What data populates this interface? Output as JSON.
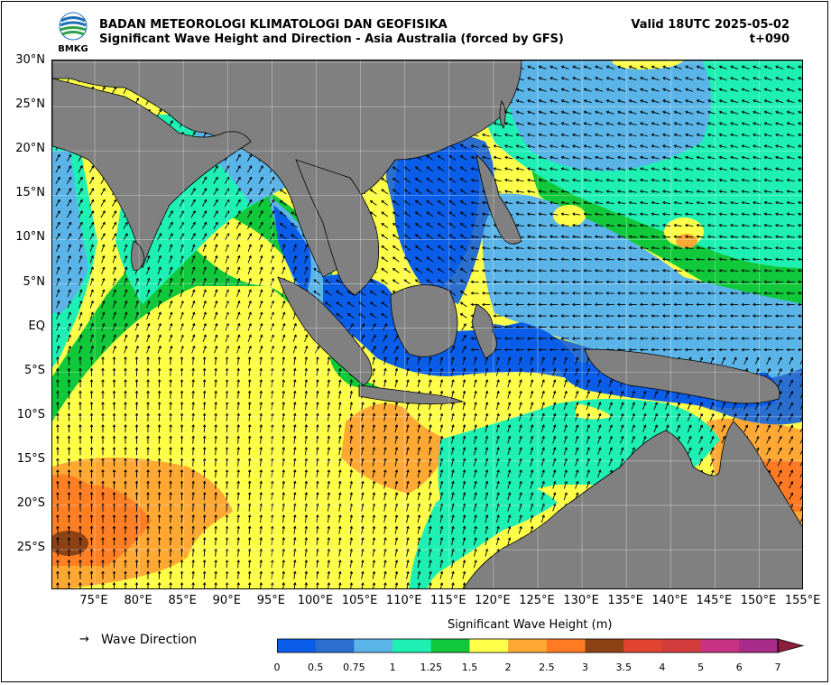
{
  "header": {
    "agency": "BADAN METEOROLOGI KLIMATOLOGI DAN GEOFISIKA",
    "product": "Significant Wave Height and Direction - Asia Australia (forced by GFS)",
    "valid": "Valid 18UTC 2025-05-02",
    "lead_time": "t+090",
    "logo_text": "BMKG"
  },
  "map": {
    "lat_labels": [
      "30°N",
      "25°N",
      "20°N",
      "15°N",
      "10°N",
      "5°N",
      "EQ",
      "5°S",
      "10°S",
      "15°S",
      "20°S",
      "25°S"
    ],
    "lon_labels": [
      "75°E",
      "80°E",
      "85°E",
      "90°E",
      "95°E",
      "100°E",
      "105°E",
      "110°E",
      "115°E",
      "120°E",
      "125°E",
      "130°E",
      "135°E",
      "140°E",
      "145°E",
      "150°E",
      "155°E"
    ],
    "lat_range": [
      -30,
      30
    ],
    "lon_range": [
      70,
      155
    ],
    "land_color": "#808080",
    "grid": true
  },
  "legend": {
    "arrow_glyph": "→",
    "wave_direction_label": "Wave Direction"
  },
  "colorbar": {
    "title": "Significant Wave Height (m)",
    "ticks": [
      "0",
      "0.5",
      "0.75",
      "1",
      "1.25",
      "1.5",
      "2",
      "2.5",
      "3",
      "3.5",
      "4",
      "5",
      "6",
      "7"
    ],
    "colors": [
      "#0a5de8",
      "#2a6fd0",
      "#5ab4e8",
      "#1ef0b4",
      "#10c83a",
      "#ffff4a",
      "#ffa834",
      "#ff7a22",
      "#8c4214",
      "#e04430",
      "#d23c3c",
      "#c83282",
      "#a82c8a"
    ],
    "extend_color": "#8c1e3c"
  }
}
